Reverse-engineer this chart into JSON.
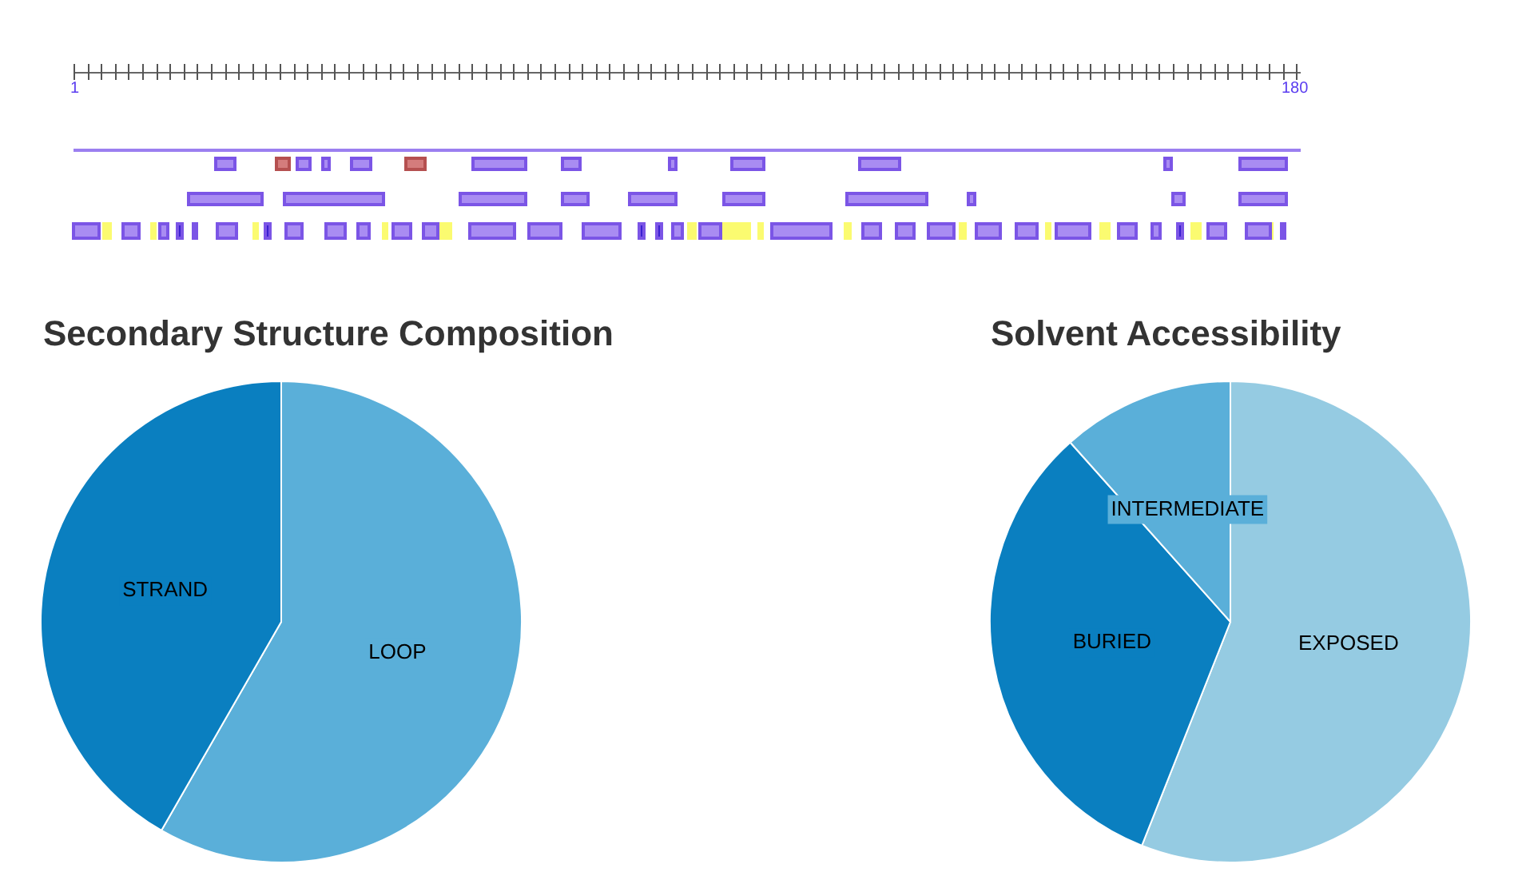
{
  "chart_data": [
    {
      "type": "other",
      "annotations": [
        "1",
        "180"
      ]
    },
    {
      "type": "pie",
      "title": "Secondary Structure Composition",
      "categories": [
        "LOOP",
        "STRAND"
      ],
      "values": [
        58.3,
        41.7
      ],
      "colors": [
        "#5aafd9",
        "#0a7fc0"
      ]
    },
    {
      "type": "pie",
      "title": "Solvent Accessibility",
      "categories": [
        "EXPOSED",
        "BURIED",
        "INTERMEDIATE"
      ],
      "values": [
        56.0,
        32.4,
        11.6
      ],
      "colors": [
        "#95cbe2",
        "#0a7fc0",
        "#5aafd9"
      ]
    }
  ]
}
